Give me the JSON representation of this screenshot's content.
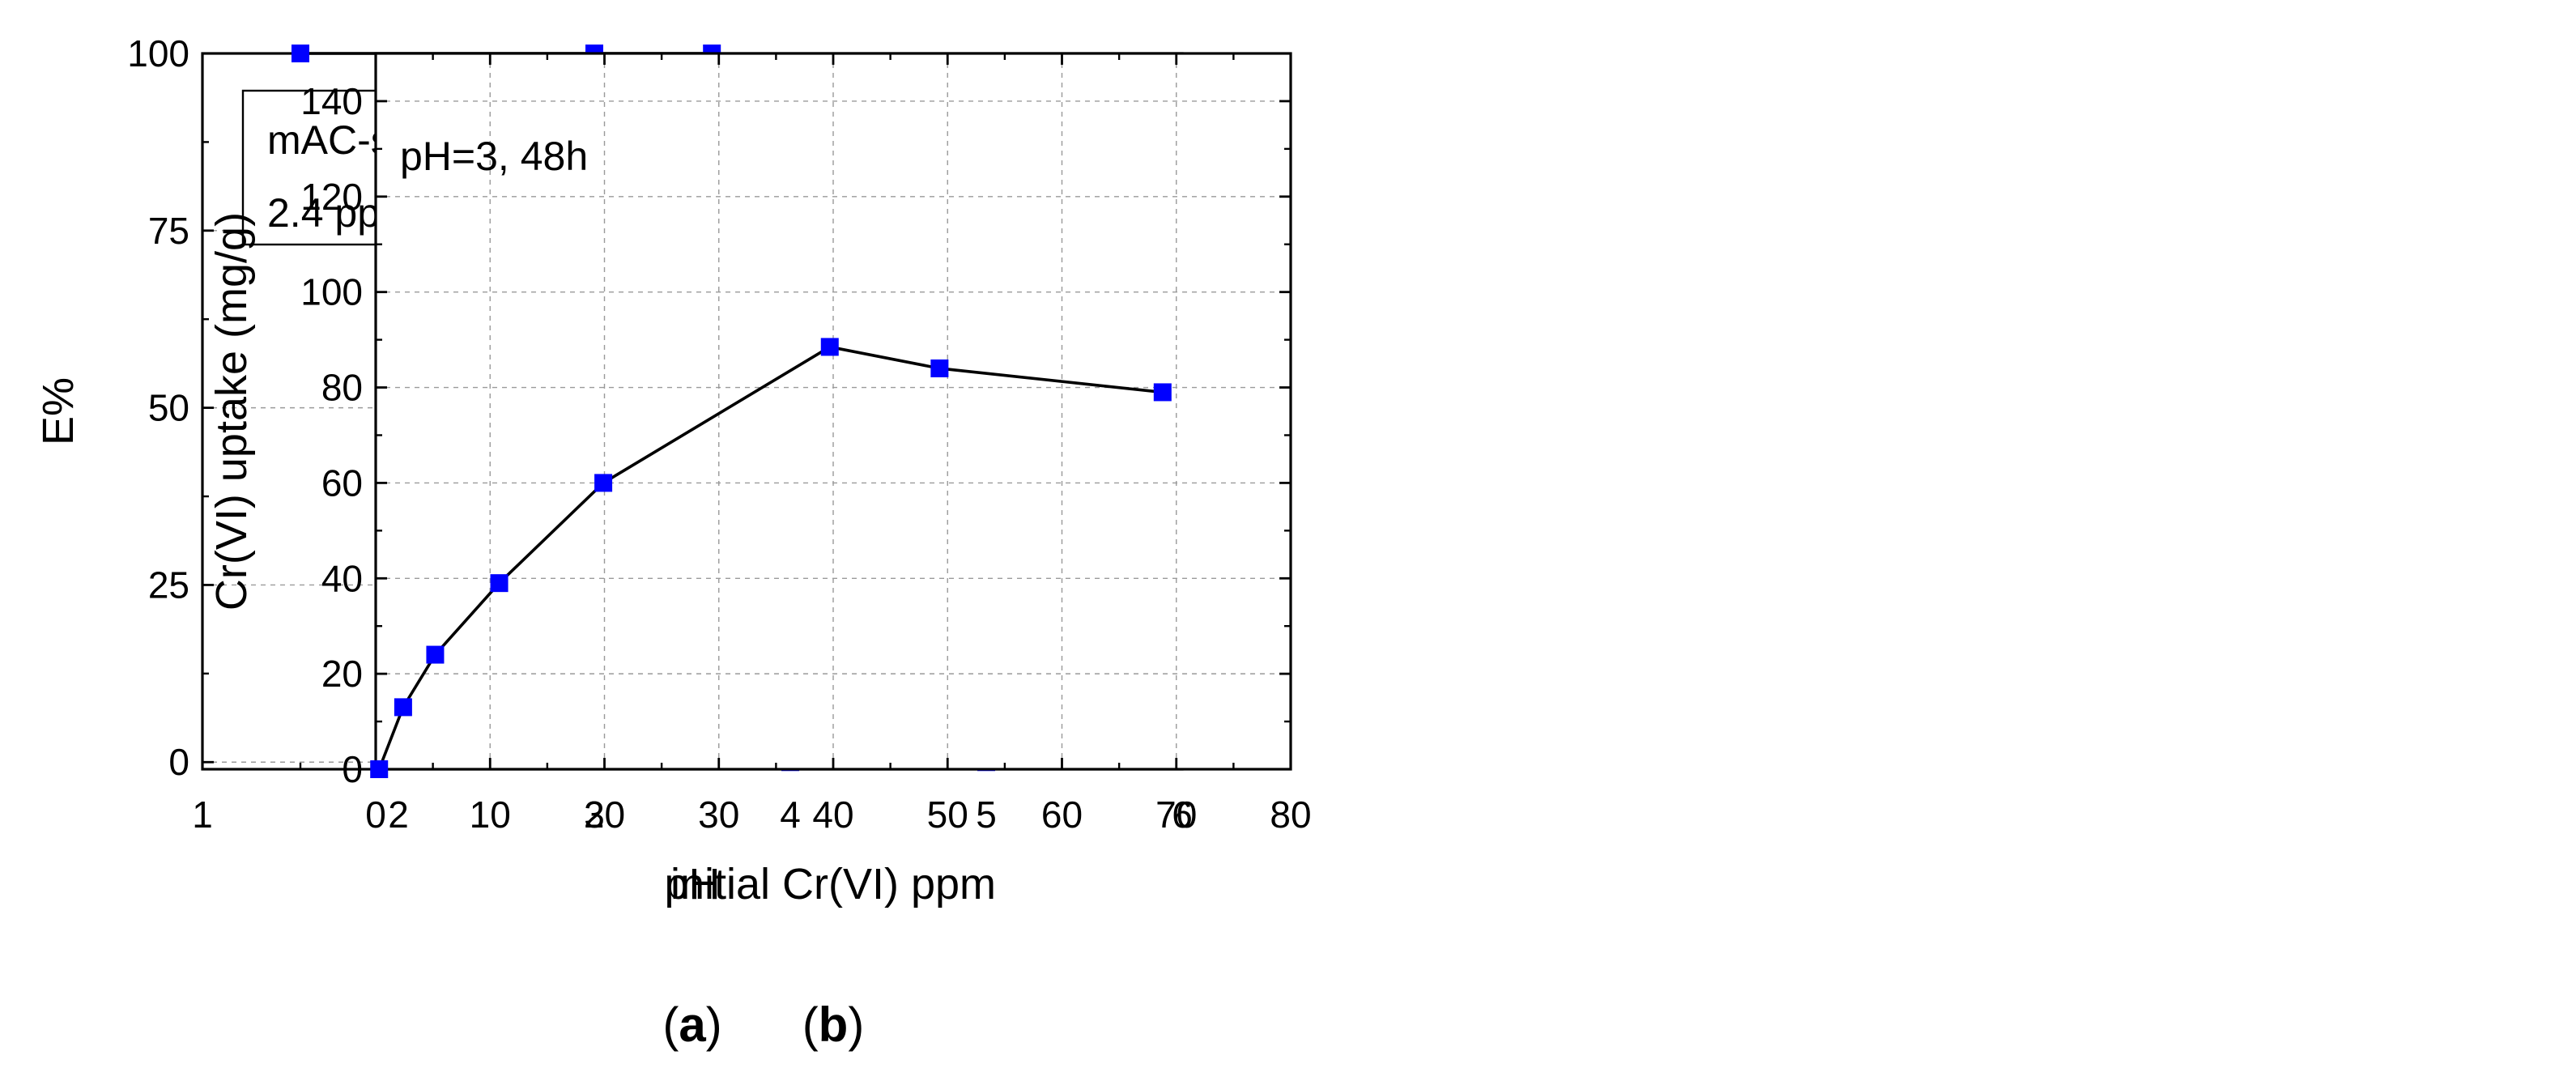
{
  "chart_data": [
    {
      "id": "a",
      "type": "line",
      "caption": "a",
      "xlabel": "pH",
      "ylabel": "E%",
      "xlim": [
        1,
        6
      ],
      "ylim": [
        -1,
        100
      ],
      "x_ticks": [
        "1",
        "2",
        "3",
        "4",
        "5",
        "6"
      ],
      "y_ticks": [
        "0",
        "25",
        "50",
        "75",
        "100"
      ],
      "grid": true,
      "annotation": [
        "mAC-snack",
        "2.4 ppm, 48h"
      ],
      "marker_color": "#0000ff",
      "line_color": "#000000",
      "series": [
        {
          "x": [
            1.5,
            3,
            3.6,
            4,
            5
          ],
          "y": [
            100,
            100,
            100,
            0,
            0
          ]
        }
      ]
    },
    {
      "id": "b",
      "type": "line",
      "caption": "b",
      "xlabel": "initial Cr(VI) ppm",
      "ylabel": "Cr(VI) uptake (mg/g)",
      "xlim": [
        0,
        80
      ],
      "ylim": [
        0,
        150
      ],
      "x_ticks": [
        "0",
        "10",
        "20",
        "30",
        "40",
        "50",
        "60",
        "70",
        "80"
      ],
      "y_ticks": [
        "0",
        "20",
        "40",
        "60",
        "80",
        "100",
        "120",
        "140"
      ],
      "grid": true,
      "annotation": [
        "pH=3, 48h"
      ],
      "marker_color": "#0000ff",
      "line_color": "#000000",
      "series": [
        {
          "x": [
            0.3,
            2.4,
            5.2,
            10.8,
            19.9,
            39.7,
            49.3,
            68.8
          ],
          "y": [
            0,
            13,
            24,
            39,
            60,
            88.5,
            84,
            79
          ]
        }
      ]
    }
  ]
}
